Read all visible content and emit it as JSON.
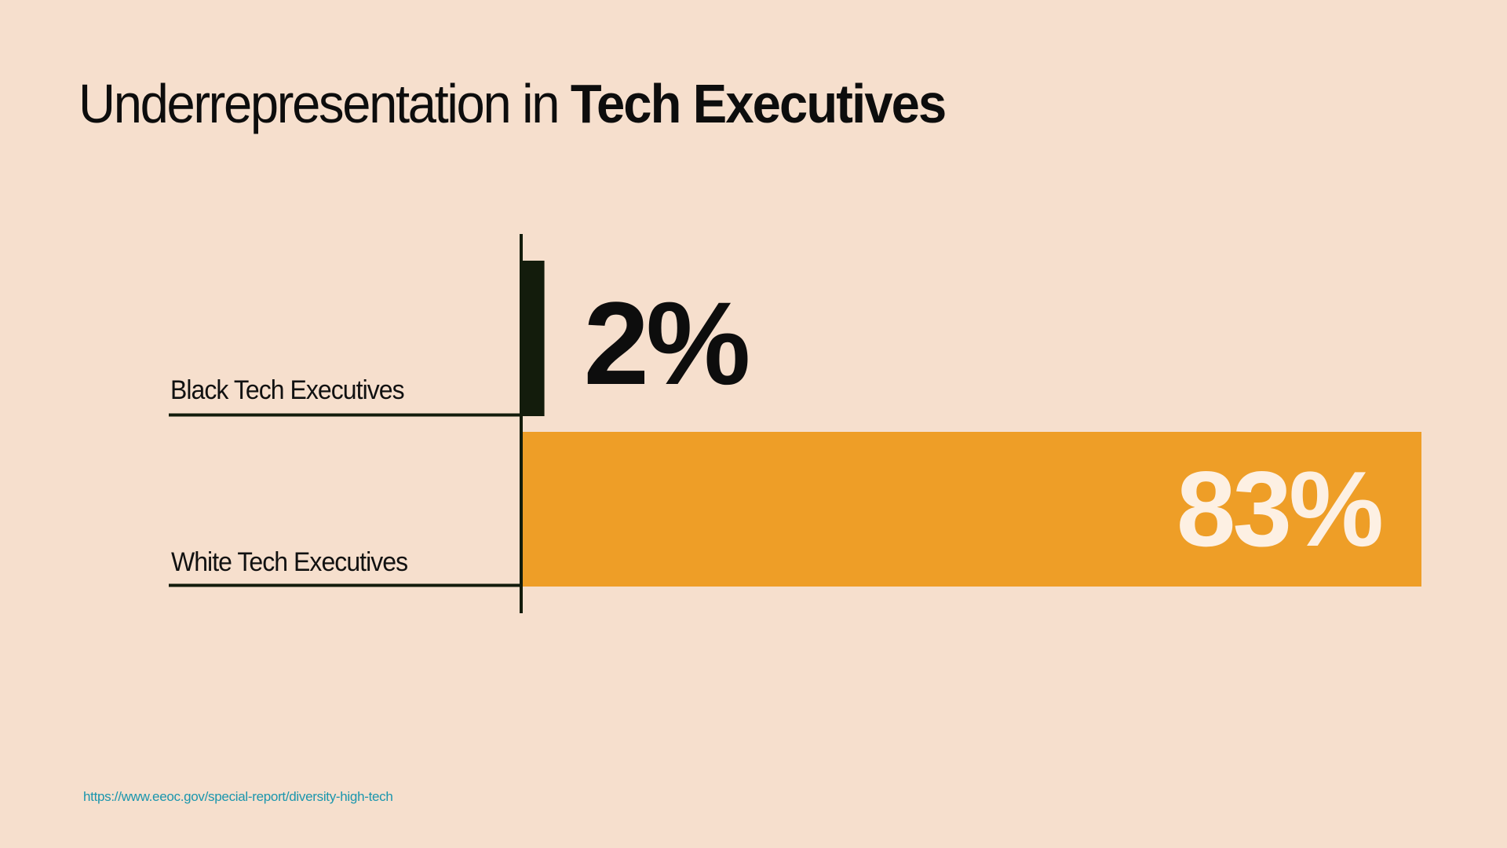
{
  "title": {
    "prefix": "Underrepresentation in ",
    "emphasis": "Tech Executives"
  },
  "chart_data": {
    "type": "bar",
    "orientation": "horizontal",
    "title": "Underrepresentation in Tech Executives",
    "categories": [
      "Black Tech Executives",
      "White Tech Executives"
    ],
    "values": [
      2,
      83
    ],
    "value_labels": [
      "2%",
      "83%"
    ],
    "unit": "%",
    "xlim": [
      0,
      100
    ],
    "grid": false,
    "legend": "none",
    "colors": {
      "Black Tech Executives": "#131c0c",
      "White Tech Executives": "#ee9e27"
    },
    "value_label_colors": [
      "#0d0d0d",
      "#fdf0e3"
    ]
  },
  "source": {
    "text": "https://www.eeoc.gov/special-report/diversity-high-tech"
  },
  "colors": {
    "background": "#f6dfcd",
    "axis": "#131c0c",
    "link": "#1b96ad"
  }
}
